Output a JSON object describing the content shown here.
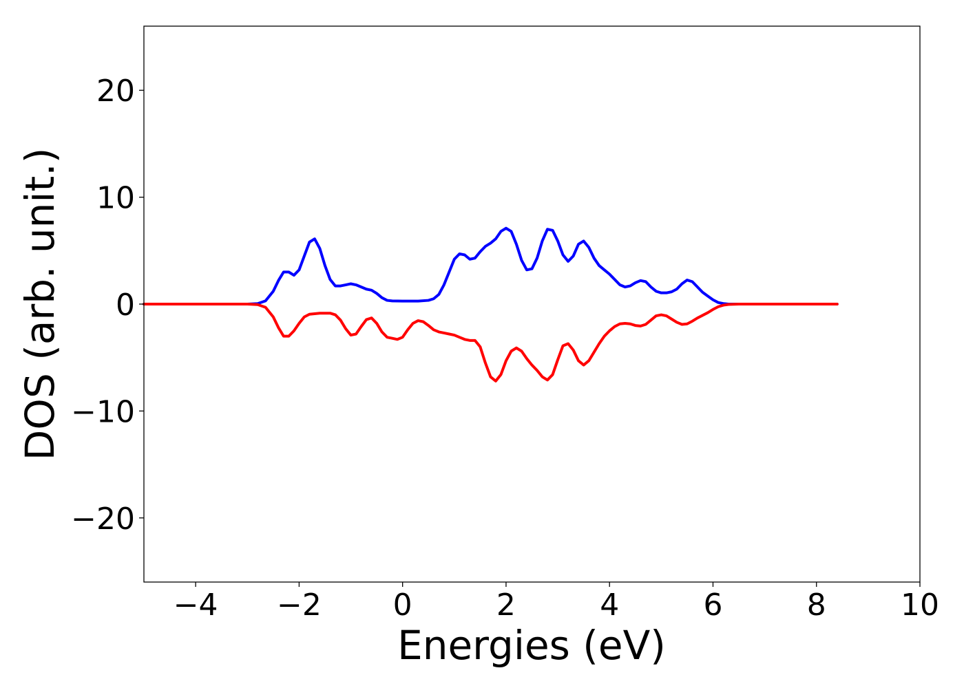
{
  "chart_data": {
    "type": "line",
    "xlabel": "Energies (eV)",
    "ylabel": "DOS (arb. unit.)",
    "xlim": [
      -5,
      10
    ],
    "ylim": [
      -26,
      26
    ],
    "xticks": [
      {
        "value": -4,
        "label": "−4"
      },
      {
        "value": -2,
        "label": "−2"
      },
      {
        "value": 0,
        "label": "0"
      },
      {
        "value": 2,
        "label": "2"
      },
      {
        "value": 4,
        "label": "4"
      },
      {
        "value": 6,
        "label": "6"
      },
      {
        "value": 8,
        "label": "8"
      },
      {
        "value": 10,
        "label": "10"
      }
    ],
    "yticks": [
      {
        "value": -20,
        "label": "−20"
      },
      {
        "value": -10,
        "label": "−10"
      },
      {
        "value": 0,
        "label": "0"
      },
      {
        "value": 10,
        "label": "10"
      },
      {
        "value": 20,
        "label": "20"
      }
    ],
    "grid": false,
    "series": [
      {
        "color": "#0000ff",
        "x": [
          -5.0,
          -3.0,
          -2.8,
          -2.65,
          -2.5,
          -2.4,
          -2.3,
          -2.2,
          -2.1,
          -2.0,
          -1.9,
          -1.8,
          -1.7,
          -1.6,
          -1.5,
          -1.4,
          -1.3,
          -1.2,
          -1.1,
          -1.0,
          -0.9,
          -0.8,
          -0.7,
          -0.6,
          -0.5,
          -0.4,
          -0.3,
          -0.2,
          0.0,
          0.3,
          0.5,
          0.6,
          0.7,
          0.8,
          0.9,
          1.0,
          1.1,
          1.2,
          1.3,
          1.4,
          1.5,
          1.6,
          1.7,
          1.8,
          1.9,
          2.0,
          2.1,
          2.2,
          2.3,
          2.4,
          2.5,
          2.6,
          2.7,
          2.8,
          2.9,
          3.0,
          3.1,
          3.2,
          3.3,
          3.4,
          3.5,
          3.6,
          3.7,
          3.8,
          3.9,
          4.0,
          4.1,
          4.2,
          4.3,
          4.4,
          4.5,
          4.6,
          4.7,
          4.8,
          4.9,
          5.0,
          5.1,
          5.2,
          5.3,
          5.4,
          5.5,
          5.6,
          5.7,
          5.8,
          5.9,
          6.0,
          6.1,
          6.2,
          6.3,
          6.5,
          8.4
        ],
        "y": [
          0,
          0,
          0.05,
          0.3,
          1.2,
          2.2,
          3.0,
          3.0,
          2.7,
          3.2,
          4.5,
          5.8,
          6.1,
          5.2,
          3.6,
          2.3,
          1.7,
          1.7,
          1.8,
          1.9,
          1.8,
          1.6,
          1.4,
          1.3,
          1.0,
          0.6,
          0.35,
          0.3,
          0.28,
          0.28,
          0.35,
          0.5,
          0.9,
          1.8,
          3.0,
          4.2,
          4.7,
          4.6,
          4.2,
          4.3,
          4.9,
          5.4,
          5.7,
          6.1,
          6.8,
          7.1,
          6.8,
          5.6,
          4.1,
          3.2,
          3.3,
          4.3,
          5.9,
          7.0,
          6.9,
          5.9,
          4.6,
          4.0,
          4.5,
          5.6,
          5.9,
          5.3,
          4.3,
          3.6,
          3.2,
          2.8,
          2.3,
          1.8,
          1.6,
          1.7,
          2.0,
          2.2,
          2.1,
          1.6,
          1.2,
          1.05,
          1.05,
          1.15,
          1.4,
          1.9,
          2.25,
          2.1,
          1.6,
          1.1,
          0.75,
          0.4,
          0.15,
          0.05,
          0,
          0,
          0
        ]
      },
      {
        "color": "#ff0000",
        "x": [
          -5.0,
          -3.0,
          -2.8,
          -2.65,
          -2.5,
          -2.4,
          -2.3,
          -2.2,
          -2.1,
          -2.0,
          -1.9,
          -1.8,
          -1.6,
          -1.4,
          -1.3,
          -1.2,
          -1.1,
          -1.0,
          -0.9,
          -0.8,
          -0.7,
          -0.6,
          -0.5,
          -0.4,
          -0.3,
          -0.2,
          -0.1,
          0.0,
          0.1,
          0.2,
          0.3,
          0.4,
          0.5,
          0.6,
          0.7,
          0.8,
          0.9,
          1.0,
          1.1,
          1.2,
          1.3,
          1.4,
          1.5,
          1.6,
          1.7,
          1.8,
          1.9,
          2.0,
          2.1,
          2.2,
          2.3,
          2.4,
          2.5,
          2.6,
          2.7,
          2.8,
          2.9,
          3.0,
          3.1,
          3.2,
          3.3,
          3.4,
          3.5,
          3.6,
          3.7,
          3.8,
          3.9,
          4.0,
          4.1,
          4.2,
          4.3,
          4.4,
          4.5,
          4.6,
          4.7,
          4.8,
          4.9,
          5.0,
          5.1,
          5.2,
          5.3,
          5.4,
          5.5,
          5.6,
          5.7,
          5.8,
          5.9,
          6.0,
          6.1,
          6.2,
          6.3,
          6.5,
          8.4
        ],
        "y": [
          0,
          0,
          -0.05,
          -0.3,
          -1.2,
          -2.2,
          -3.0,
          -3.0,
          -2.5,
          -1.8,
          -1.2,
          -0.95,
          -0.85,
          -0.85,
          -1.0,
          -1.5,
          -2.3,
          -2.9,
          -2.8,
          -2.1,
          -1.45,
          -1.3,
          -1.8,
          -2.6,
          -3.1,
          -3.2,
          -3.3,
          -3.1,
          -2.4,
          -1.8,
          -1.55,
          -1.65,
          -2.0,
          -2.4,
          -2.6,
          -2.7,
          -2.8,
          -2.9,
          -3.1,
          -3.3,
          -3.4,
          -3.4,
          -4.0,
          -5.5,
          -6.8,
          -7.2,
          -6.6,
          -5.3,
          -4.4,
          -4.1,
          -4.4,
          -5.1,
          -5.7,
          -6.2,
          -6.8,
          -7.1,
          -6.6,
          -5.2,
          -3.9,
          -3.7,
          -4.3,
          -5.3,
          -5.7,
          -5.3,
          -4.5,
          -3.7,
          -3.0,
          -2.5,
          -2.1,
          -1.85,
          -1.8,
          -1.85,
          -2.0,
          -2.05,
          -1.9,
          -1.5,
          -1.1,
          -1.0,
          -1.1,
          -1.4,
          -1.7,
          -1.9,
          -1.85,
          -1.6,
          -1.3,
          -1.05,
          -0.8,
          -0.5,
          -0.25,
          -0.1,
          -0.03,
          0,
          0
        ]
      }
    ]
  }
}
